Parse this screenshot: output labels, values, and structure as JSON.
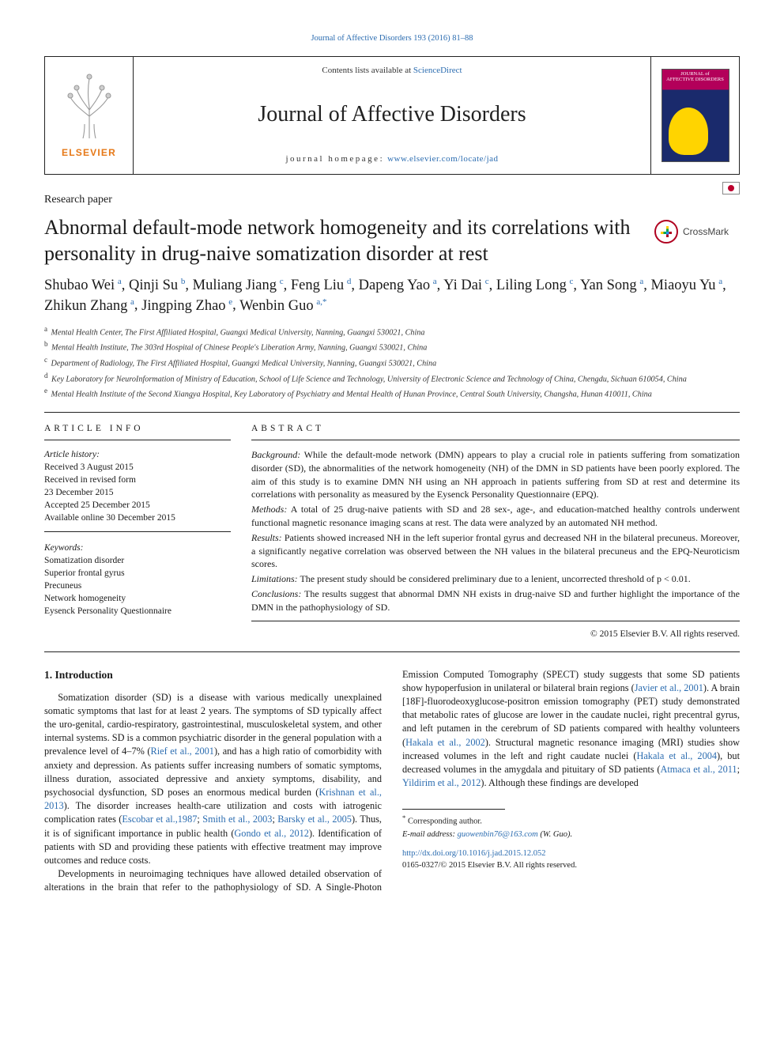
{
  "running_head": {
    "citation": "Journal of Affective Disorders 193 (2016) 81–88",
    "color": "#2b6cb0"
  },
  "masthead": {
    "contents_prefix": "Contents lists available at ",
    "contents_link": "ScienceDirect",
    "journal_title": "Journal of Affective Disorders",
    "homepage_label": "journal homepage:",
    "homepage_url": "www.elsevier.com/locate/jad",
    "publisher_word": "ELSEVIER",
    "publisher_color": "#e67817",
    "cover_line1": "JOURNAL of",
    "cover_line2": "AFFECTIVE DISORDERS"
  },
  "article_type": "Research paper",
  "title": "Abnormal default-mode network homogeneity and its correlations with personality in drug-naive somatization disorder at rest",
  "crossmark_label": "CrossMark",
  "authors": [
    {
      "name": "Shubao Wei",
      "aff": "a"
    },
    {
      "name": "Qinji Su",
      "aff": "b"
    },
    {
      "name": "Muliang Jiang",
      "aff": "c"
    },
    {
      "name": "Feng Liu",
      "aff": "d"
    },
    {
      "name": "Dapeng Yao",
      "aff": "a"
    },
    {
      "name": "Yi Dai",
      "aff": "c"
    },
    {
      "name": "Liling Long",
      "aff": "c"
    },
    {
      "name": "Yan Song",
      "aff": "a"
    },
    {
      "name": "Miaoyu Yu",
      "aff": "a"
    },
    {
      "name": "Zhikun Zhang",
      "aff": "a"
    },
    {
      "name": "Jingping Zhao",
      "aff": "e"
    },
    {
      "name": "Wenbin Guo",
      "aff": "a",
      "corr": true
    }
  ],
  "affiliations": [
    {
      "key": "a",
      "text": "Mental Health Center, The First Affiliated Hospital, Guangxi Medical University, Nanning, Guangxi 530021, China"
    },
    {
      "key": "b",
      "text": "Mental Health Institute, The 303rd Hospital of Chinese People's Liberation Army, Nanning, Guangxi 530021, China"
    },
    {
      "key": "c",
      "text": "Department of Radiology, The First Affiliated Hospital, Guangxi Medical University, Nanning, Guangxi 530021, China"
    },
    {
      "key": "d",
      "text": "Key Laboratory for NeuroInformation of Ministry of Education, School of Life Science and Technology, University of Electronic Science and Technology of China, Chengdu, Sichuan 610054, China"
    },
    {
      "key": "e",
      "text": "Mental Health Institute of the Second Xiangya Hospital, Key Laboratory of Psychiatry and Mental Health of Hunan Province, Central South University, Changsha, Hunan 410011, China"
    }
  ],
  "article_info": {
    "head": "ARTICLE INFO",
    "history_label": "Article history:",
    "history": [
      "Received 3 August 2015",
      "Received in revised form",
      "23 December 2015",
      "Accepted 25 December 2015",
      "Available online 30 December 2015"
    ],
    "keywords_label": "Keywords:",
    "keywords": [
      "Somatization disorder",
      "Superior frontal gyrus",
      "Precuneus",
      "Network homogeneity",
      "Eysenck Personality Questionnaire"
    ]
  },
  "abstract": {
    "head": "ABSTRACT",
    "segments": [
      {
        "label": "Background:",
        "text": " While the default-mode network (DMN) appears to play a crucial role in patients suffering from somatization disorder (SD), the abnormalities of the network homogeneity (NH) of the DMN in SD patients have been poorly explored. The aim of this study is to examine DMN NH using an NH approach in patients suffering from SD at rest and determine its correlations with personality as measured by the Eysenck Personality Questionnaire (EPQ)."
      },
      {
        "label": "Methods:",
        "text": " A total of 25 drug-naive patients with SD and 28 sex-, age-, and education-matched healthy controls underwent functional magnetic resonance imaging scans at rest. The data were analyzed by an automated NH method."
      },
      {
        "label": "Results:",
        "text": " Patients showed increased NH in the left superior frontal gyrus and decreased NH in the bilateral precuneus. Moreover, a significantly negative correlation was observed between the NH values in the bilateral precuneus and the EPQ-Neuroticism scores."
      },
      {
        "label": "Limitations:",
        "text": " The present study should be considered preliminary due to a lenient, uncorrected threshold of p < 0.01."
      },
      {
        "label": "Conclusions:",
        "text": " The results suggest that abnormal DMN NH exists in drug-naive SD and further highlight the importance of the DMN in the pathophysiology of SD."
      }
    ],
    "copyright": "© 2015 Elsevier B.V. All rights reserved."
  },
  "intro": {
    "heading": "1.  Introduction",
    "p1_a": "Somatization disorder (SD) is a disease with various medically unexplained somatic symptoms that last for at least 2 years. The symptoms of SD typically affect the uro-genital, cardio-respiratory, gastrointestinal, musculoskeletal system, and other internal systems. SD is a common psychiatric disorder in the general population with a prevalence level of 4–7% (",
    "p1_c1": "Rief et al., 2001",
    "p1_b": "), and has a high ratio of comorbidity with anxiety and depression. As patients suffer increasing numbers of somatic symptoms, illness duration, associated depressive and anxiety symptoms, disability, and psychosocial dysfunction, SD poses an enormous medical burden (",
    "p1_c2": "Krishnan et al., 2013",
    "p1_c": "). The disorder increases health-care utilization and costs with iatrogenic complication rates (",
    "p1_c3": "Escobar et al.,1987",
    "p1_d": "; ",
    "p1_c4": "Smith et al., 2003",
    "p1_e": "; ",
    "p1_c5": "Barsky et al., 2005",
    "p1_f": "). Thus, it is of significant importance in public health (",
    "p1_c6": "Gondo et al., 2012",
    "p1_g": "). Identification of patients with SD and providing these patients with effective treatment may improve outcomes and reduce costs.",
    "p2_a": "Developments in neuroimaging techniques have allowed detailed observation of alterations in the brain that refer to the pathophysiology of SD. A Single-Photon Emission Computed Tomography (SPECT) study suggests that some SD patients show hypoperfusion in unilateral or bilateral brain regions (",
    "p2_c1": "Javier et al., 2001",
    "p2_b": "). A brain [18F]-fluorodeoxyglucose-positron emission tomography (PET) study demonstrated that metabolic rates of glucose are lower in the caudate nuclei, right precentral gyrus, and left putamen in the cerebrum of SD patients compared with healthy volunteers (",
    "p2_c2": "Hakala et al., 2002",
    "p2_c": "). Structural magnetic resonance imaging (MRI) studies show increased volumes in the left and right caudate nuclei (",
    "p2_c3": "Hakala et al., 2004",
    "p2_d": "), but decreased volumes in the amygdala and pituitary of SD patients (",
    "p2_c4": "Atmaca et al., 2011",
    "p2_e": "; ",
    "p2_c5": "Yildirim et al., 2012",
    "p2_f": "). Although these findings are developed"
  },
  "footnotes": {
    "corr_symbol": "*",
    "corr_label": "Corresponding author.",
    "email_label": "E-mail address:",
    "email": "guowenbin76@163.com",
    "email_name": "(W. Guo)."
  },
  "doi": {
    "url": "http://dx.doi.org/10.1016/j.jad.2015.12.052",
    "issn_line": "0165-0327/© 2015 Elsevier B.V. All rights reserved."
  },
  "colors": {
    "link": "#2b6cb0",
    "text": "#1a1a1a",
    "orange": "#e67817"
  }
}
